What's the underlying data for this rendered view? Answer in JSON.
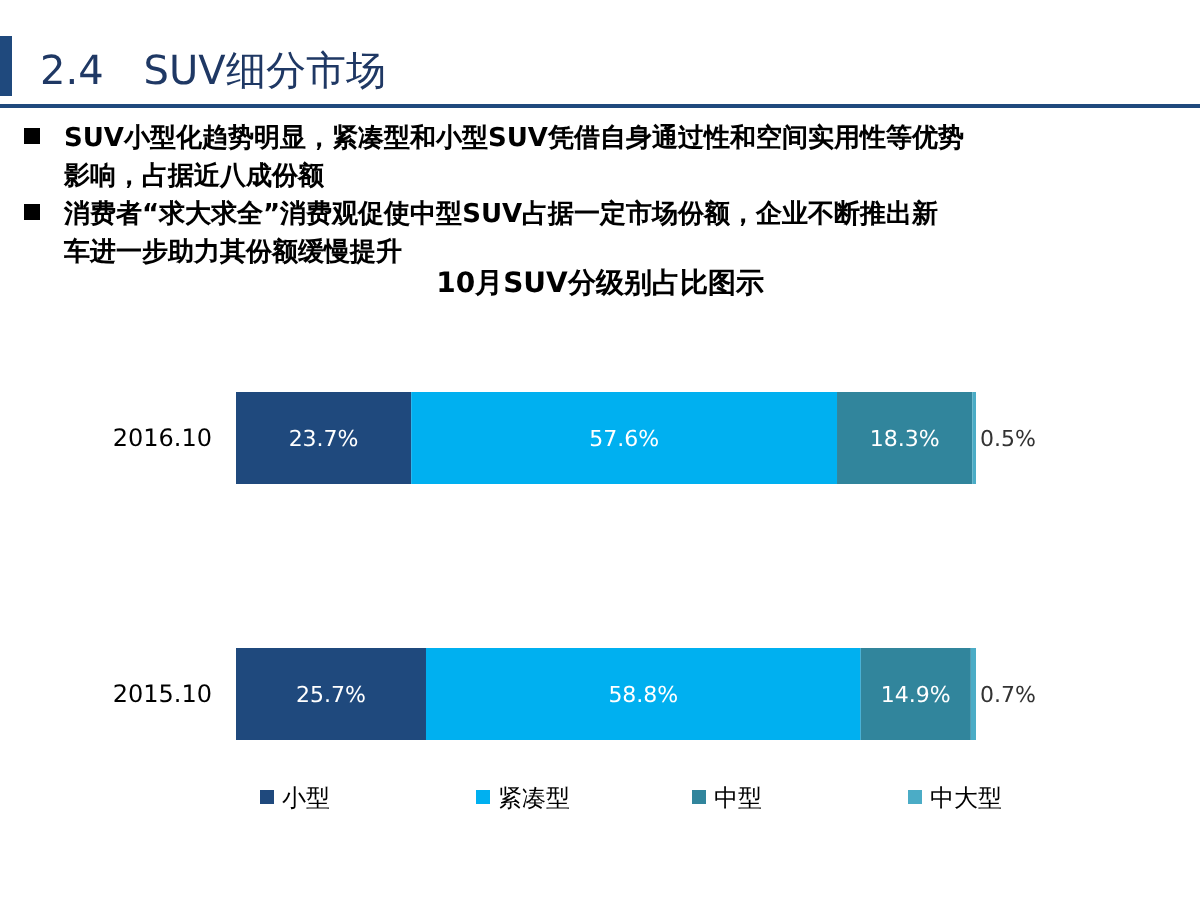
{
  "chart_data": {
    "type": "bar",
    "orientation": "horizontal",
    "stacked": true,
    "legend": "bottom",
    "title": "2.4　SUV细分市场",
    "subtitle": "10月SUV分级别占比图示",
    "annotations": [
      "SUV小型化趋势明显，紧凑型和小型SUV凭借自身通过性和空间实用性等优势影响，占据近八成份额",
      "消费者“求大求全”消费观促使中型SUV占据一定市场份额，企业不断推出新车进一步助力其份额缓慢提升"
    ],
    "categories": [
      "2016.10",
      "2015.10"
    ],
    "series": [
      {
        "name": "小型",
        "color": "#1f497d",
        "values": [
          23.7,
          25.7
        ],
        "value_labels": [
          "23.7%",
          "25.7%"
        ]
      },
      {
        "name": "紧凑型",
        "color": "#00b0f0",
        "values": [
          57.6,
          58.8
        ],
        "value_labels": [
          "57.6%",
          "58.8%"
        ]
      },
      {
        "name": "中型",
        "color": "#31859c",
        "values": [
          18.3,
          14.9
        ],
        "value_labels": [
          "18.3%",
          "14.9%"
        ]
      },
      {
        "name": "中大型",
        "color": "#4bacc6",
        "values": [
          0.5,
          0.7
        ],
        "value_labels": [
          "0.5%",
          "0.7%"
        ]
      }
    ]
  }
}
